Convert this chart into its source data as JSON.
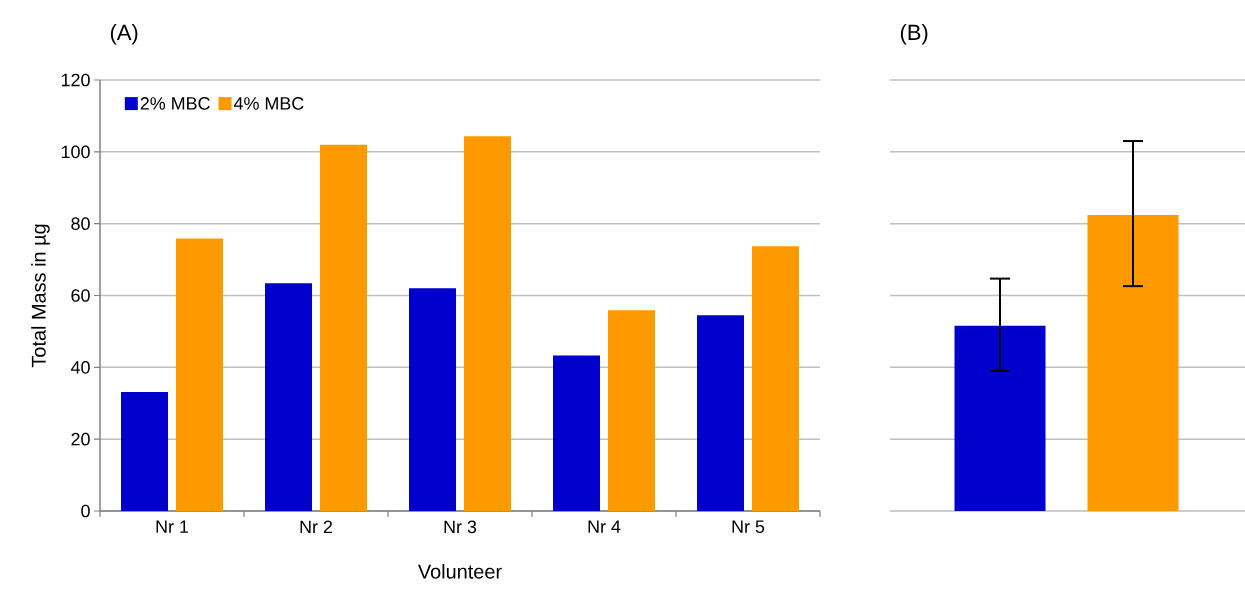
{
  "chart_data": [
    {
      "type": "bar",
      "title": "(A)",
      "xlabel": "Volunteer",
      "ylabel": "Total Mass in µg",
      "categories": [
        "Nr 1",
        "Nr 2",
        "Nr 3",
        "Nr 4",
        "Nr 5"
      ],
      "series": [
        {
          "name": "2% MBC",
          "color": "#0000cc",
          "values": [
            33.1,
            63.4,
            62.0,
            43.3,
            54.5
          ]
        },
        {
          "name": "4% MBC",
          "color": "#ff9900",
          "values": [
            75.9,
            102.0,
            104.3,
            55.9,
            73.7
          ]
        }
      ],
      "ylim": [
        0,
        120
      ],
      "yticks": [
        0,
        20,
        40,
        60,
        80,
        100,
        120
      ],
      "grid": "y",
      "legend": "top left"
    },
    {
      "type": "bar",
      "title": "(B)",
      "categories": [
        null,
        null
      ],
      "values": [
        51.6,
        82.4
      ],
      "colors": [
        "#0000cc",
        "#ff9900"
      ],
      "errors": [
        [
          39.0,
          64.7
        ],
        [
          62.6,
          103.0
        ]
      ],
      "ylim": [
        0,
        120
      ],
      "yticks": [
        0,
        20,
        40,
        60,
        80,
        100,
        120
      ],
      "grid": "y",
      "tick_labels": false
    }
  ]
}
